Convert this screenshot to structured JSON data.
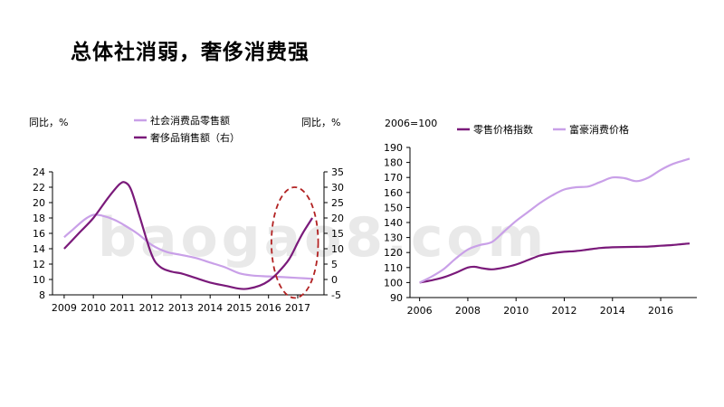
{
  "page": {
    "title": "总体社消弱，奢侈消费强",
    "watermark": "baogao8.com"
  },
  "colors": {
    "light": "#c9a0e8",
    "dark": "#7a1a7a",
    "highlight": "#b22222",
    "axis": "#000000"
  },
  "chart_data": [
    {
      "type": "line",
      "left_unit_label": "同比，%",
      "right_unit_label": "同比，%",
      "x_ticks": [
        2009,
        2010,
        2011,
        2012,
        2013,
        2014,
        2015,
        2016,
        2017
      ],
      "xlim": [
        2008.6,
        2017.9
      ],
      "y_left": {
        "min": 8,
        "max": 24,
        "ticks": [
          8,
          10,
          12,
          14,
          16,
          18,
          20,
          22,
          24
        ]
      },
      "y_right": {
        "min": -5,
        "max": 35,
        "ticks": [
          -5,
          0,
          5,
          10,
          15,
          20,
          25,
          30,
          35
        ]
      },
      "series": [
        {
          "name": "社会消费品零售额",
          "axis": "left",
          "color": "#c9a0e8",
          "x": [
            2009.0,
            2009.3,
            2009.7,
            2010.0,
            2010.3,
            2010.7,
            2011.0,
            2011.5,
            2012.0,
            2012.5,
            2013.0,
            2013.5,
            2014.0,
            2014.5,
            2015.0,
            2015.5,
            2016.0,
            2016.5,
            2017.0,
            2017.5
          ],
          "y": [
            15.5,
            16.5,
            17.8,
            18.4,
            18.3,
            17.8,
            17.2,
            16.0,
            14.5,
            13.6,
            13.2,
            12.8,
            12.2,
            11.6,
            10.8,
            10.5,
            10.4,
            10.3,
            10.2,
            10.1
          ]
        },
        {
          "name": "奢侈品销售额（右）",
          "axis": "right",
          "color": "#7a1a7a",
          "x": [
            2009.0,
            2009.5,
            2010.0,
            2010.5,
            2010.9,
            2011.1,
            2011.3,
            2011.6,
            2012.0,
            2012.3,
            2012.7,
            2013.0,
            2013.5,
            2014.0,
            2014.5,
            2015.0,
            2015.3,
            2015.7,
            2016.0,
            2016.3,
            2016.7,
            2017.0,
            2017.2,
            2017.5
          ],
          "y": [
            10.0,
            15.0,
            20.0,
            26.5,
            31.0,
            31.5,
            29.0,
            20.0,
            8.0,
            4.0,
            2.5,
            2.0,
            0.5,
            -1.0,
            -2.0,
            -3.0,
            -3.0,
            -2.0,
            -0.5,
            2.0,
            6.5,
            12.0,
            15.5,
            20.0
          ]
        }
      ],
      "annotation": {
        "type": "dashed-ellipse",
        "x_center": 2016.9,
        "y_right_center": 12.0,
        "x_radius": 0.8,
        "y_right_radius": 18.0
      },
      "legend_placement": "top-center"
    },
    {
      "type": "line",
      "base_label": "2006=100",
      "x_ticks": [
        2006,
        2008,
        2010,
        2012,
        2014,
        2016
      ],
      "xlim": [
        2005.6,
        2017.5
      ],
      "y": {
        "min": 90,
        "max": 190,
        "ticks": [
          90,
          100,
          110,
          120,
          130,
          140,
          150,
          160,
          170,
          180,
          190
        ]
      },
      "series": [
        {
          "name": "零售价格指数",
          "color": "#7a1a7a",
          "x": [
            2006.0,
            2006.5,
            2007.0,
            2007.5,
            2008.0,
            2008.3,
            2008.6,
            2009.0,
            2009.5,
            2010.0,
            2010.5,
            2011.0,
            2011.5,
            2012.0,
            2012.5,
            2013.0,
            2013.5,
            2014.0,
            2014.5,
            2015.0,
            2015.5,
            2016.0,
            2016.5,
            2017.0,
            2017.2
          ],
          "y": [
            100.0,
            101.5,
            103.5,
            106.5,
            110.0,
            110.5,
            109.5,
            108.8,
            110.0,
            112.0,
            115.0,
            118.0,
            119.5,
            120.5,
            121.0,
            122.0,
            123.0,
            123.5,
            123.7,
            123.8,
            124.0,
            124.5,
            125.0,
            125.8,
            126.0
          ]
        },
        {
          "name": "富豪消费价格",
          "color": "#c9a0e8",
          "x": [
            2006.0,
            2006.5,
            2007.0,
            2007.5,
            2008.0,
            2008.5,
            2009.0,
            2009.5,
            2010.0,
            2010.5,
            2011.0,
            2011.5,
            2012.0,
            2012.5,
            2013.0,
            2013.5,
            2014.0,
            2014.5,
            2015.0,
            2015.5,
            2016.0,
            2016.5,
            2017.0,
            2017.2
          ],
          "y": [
            100.0,
            104.0,
            109.0,
            116.0,
            122.0,
            125.0,
            127.0,
            134.0,
            141.0,
            147.0,
            153.0,
            158.0,
            162.0,
            163.5,
            164.0,
            167.0,
            170.0,
            169.5,
            167.5,
            170.0,
            175.0,
            179.0,
            181.5,
            182.5
          ]
        }
      ],
      "legend_placement": "top-right"
    }
  ]
}
